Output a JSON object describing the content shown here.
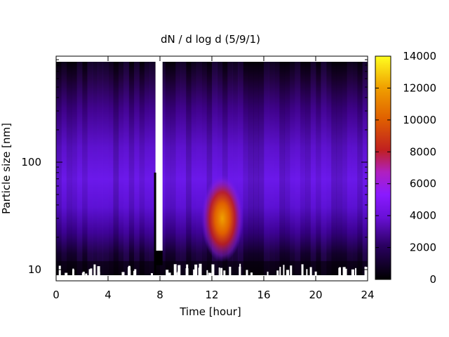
{
  "chart_data": {
    "type": "heatmap",
    "title": "dN / d log d (5/9/1)",
    "xlabel": "Time [hour]",
    "ylabel": "Particle size [nm]",
    "xlim": [
      0,
      24
    ],
    "ylim": [
      8,
      1000
    ],
    "yscale": "log",
    "x_ticks": [
      0,
      4,
      8,
      12,
      16,
      20,
      24
    ],
    "y_tick_labels": [
      {
        "value": 10,
        "label": "10"
      },
      {
        "value": 100,
        "label": "100"
      }
    ],
    "colorbar": {
      "range": [
        0,
        14000
      ],
      "ticks": [
        0,
        2000,
        4000,
        6000,
        8000,
        10000,
        12000,
        14000
      ],
      "colormap": "gnuplot-pm3d-black-purple-red-yellow"
    },
    "data_gap_hours": [
      7.6,
      8.2
    ],
    "features": [
      {
        "name": "growth-burst",
        "time_hour": 12.8,
        "size_nm": 30,
        "value": 11000
      },
      {
        "name": "background-mode",
        "size_nm": 60,
        "value": 2000
      }
    ],
    "colors": {
      "low": "#000000",
      "mid": "#8a00ff",
      "high": "#ff3c00",
      "max": "#ffff00"
    }
  }
}
